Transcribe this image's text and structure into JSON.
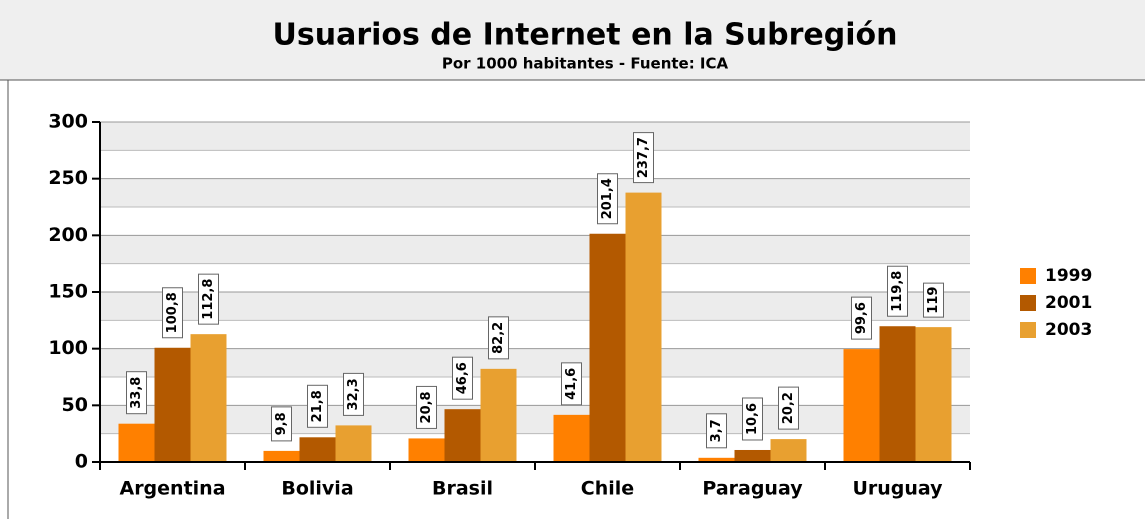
{
  "chart_data": {
    "type": "bar",
    "title": "Usuarios de Internet en la Subregión",
    "subtitle": "Por 1000 habitantes - Fuente: ICA",
    "categories": [
      "Argentina",
      "Bolivia",
      "Brasil",
      "Chile",
      "Paraguay",
      "Uruguay"
    ],
    "series": [
      {
        "name": "1999",
        "color": "#ff8000",
        "values": [
          33.8,
          9.8,
          20.8,
          41.6,
          3.7,
          99.6
        ],
        "value_labels": [
          "33,8",
          "9,8",
          "20,8",
          "41,6",
          "3,7",
          "99,6"
        ]
      },
      {
        "name": "2001",
        "color": "#b35900",
        "values": [
          100.8,
          21.8,
          46.6,
          201.4,
          10.6,
          119.8
        ],
        "value_labels": [
          "100,8",
          "21,8",
          "46,6",
          "201,4",
          "10,6",
          "119,8"
        ]
      },
      {
        "name": "2003",
        "color": "#e8a030",
        "values": [
          112.8,
          32.3,
          82.2,
          237.7,
          20.2,
          119
        ],
        "value_labels": [
          "112,8",
          "32,3",
          "82,2",
          "237,7",
          "20,2",
          "119"
        ]
      }
    ],
    "ylim": [
      0,
      300
    ],
    "yticks": [
      0,
      50,
      100,
      150,
      200,
      250,
      300
    ],
    "grid": true,
    "legend": "right"
  }
}
